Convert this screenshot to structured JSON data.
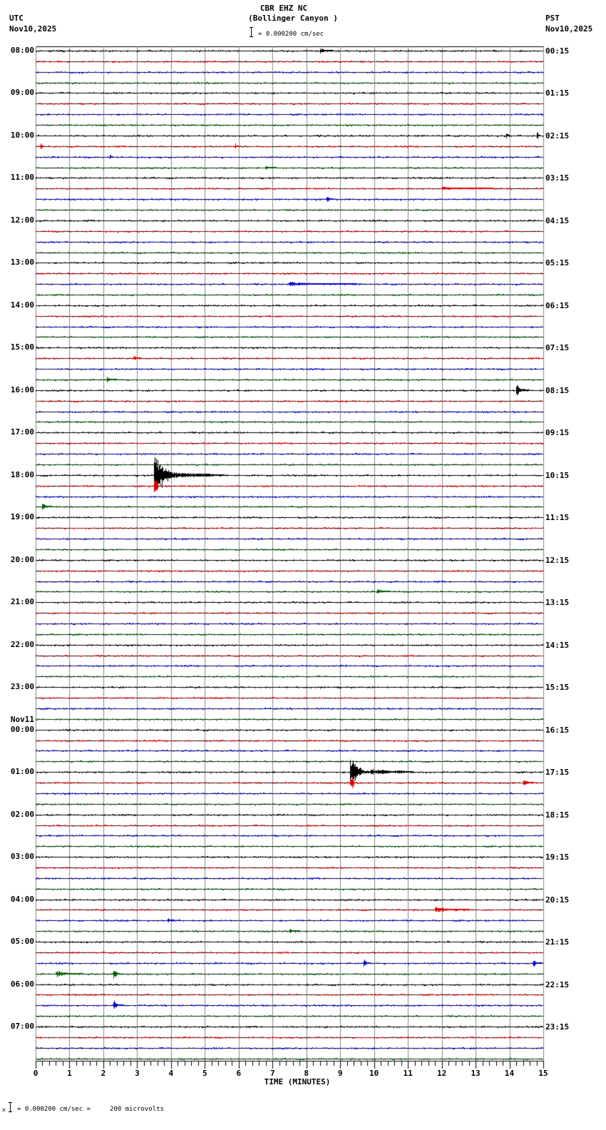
{
  "header": {
    "station": "CBR EHZ NC",
    "site": "(Bollinger Canyon )",
    "scale_text": "= 0.000200 cm/sec",
    "left_tz": "UTC",
    "left_date": "Nov10,2025",
    "right_tz": "PST",
    "right_date": "Nov10,2025"
  },
  "footer": {
    "marker": "x",
    "scale_text": "= 0.000200 cm/sec =     200 microvolts"
  },
  "chart_data": {
    "type": "line",
    "title": "CBR EHZ NC (Bollinger Canyon )",
    "subtitle": "= 0.000200 cm/sec",
    "xlabel": "TIME (MINUTES)",
    "ylabel": "",
    "xlim": [
      0,
      15
    ],
    "x_ticks": [
      "0",
      "1",
      "2",
      "3",
      "4",
      "5",
      "6",
      "7",
      "8",
      "9",
      "10",
      "11",
      "12",
      "13",
      "14",
      "15"
    ],
    "grid": true,
    "trace_colors": [
      "#000000",
      "#e00000",
      "#0000d0",
      "#006000"
    ],
    "rows_per_hour": 4,
    "minutes_per_row": 15,
    "left_hour_labels": [
      {
        "row": 0,
        "label": "08:00"
      },
      {
        "row": 4,
        "label": "09:00"
      },
      {
        "row": 8,
        "label": "10:00"
      },
      {
        "row": 12,
        "label": "11:00"
      },
      {
        "row": 16,
        "label": "12:00"
      },
      {
        "row": 20,
        "label": "13:00"
      },
      {
        "row": 24,
        "label": "14:00"
      },
      {
        "row": 28,
        "label": "15:00"
      },
      {
        "row": 32,
        "label": "16:00"
      },
      {
        "row": 36,
        "label": "17:00"
      },
      {
        "row": 40,
        "label": "18:00"
      },
      {
        "row": 44,
        "label": "19:00"
      },
      {
        "row": 48,
        "label": "20:00"
      },
      {
        "row": 52,
        "label": "21:00"
      },
      {
        "row": 56,
        "label": "22:00"
      },
      {
        "row": 60,
        "label": "23:00"
      },
      {
        "row": 64,
        "label": "00:00",
        "date": "Nov11"
      },
      {
        "row": 68,
        "label": "01:00"
      },
      {
        "row": 72,
        "label": "02:00"
      },
      {
        "row": 76,
        "label": "03:00"
      },
      {
        "row": 80,
        "label": "04:00"
      },
      {
        "row": 84,
        "label": "05:00"
      },
      {
        "row": 88,
        "label": "06:00"
      },
      {
        "row": 92,
        "label": "07:00"
      }
    ],
    "right_hour_labels": [
      {
        "row": 0,
        "label": "00:15"
      },
      {
        "row": 4,
        "label": "01:15"
      },
      {
        "row": 8,
        "label": "02:15"
      },
      {
        "row": 12,
        "label": "03:15"
      },
      {
        "row": 16,
        "label": "04:15"
      },
      {
        "row": 20,
        "label": "05:15"
      },
      {
        "row": 24,
        "label": "06:15"
      },
      {
        "row": 28,
        "label": "07:15"
      },
      {
        "row": 32,
        "label": "08:15"
      },
      {
        "row": 36,
        "label": "09:15"
      },
      {
        "row": 40,
        "label": "10:15"
      },
      {
        "row": 44,
        "label": "11:15"
      },
      {
        "row": 48,
        "label": "12:15"
      },
      {
        "row": 52,
        "label": "13:15"
      },
      {
        "row": 56,
        "label": "14:15"
      },
      {
        "row": 60,
        "label": "15:15"
      },
      {
        "row": 64,
        "label": "16:15"
      },
      {
        "row": 68,
        "label": "17:15"
      },
      {
        "row": 72,
        "label": "18:15"
      },
      {
        "row": 76,
        "label": "19:15"
      },
      {
        "row": 80,
        "label": "20:15"
      },
      {
        "row": 84,
        "label": "21:15"
      },
      {
        "row": 88,
        "label": "22:15"
      },
      {
        "row": 92,
        "label": "23:15"
      }
    ],
    "total_rows": 96,
    "events": [
      {
        "row": 0,
        "minute": 8.4,
        "amp": 5,
        "dur": 0.4
      },
      {
        "row": 8,
        "minute": 13.9,
        "amp": 6,
        "dur": 0.1
      },
      {
        "row": 8,
        "minute": 14.8,
        "amp": 8,
        "dur": 0.1
      },
      {
        "row": 9,
        "minute": 0.15,
        "amp": 6,
        "dur": 0.1
      },
      {
        "row": 9,
        "minute": 5.9,
        "amp": 5,
        "dur": 0.1
      },
      {
        "row": 10,
        "minute": 2.2,
        "amp": 6,
        "dur": 0.1
      },
      {
        "row": 11,
        "minute": 6.8,
        "amp": 5,
        "dur": 0.3
      },
      {
        "row": 14,
        "minute": 8.6,
        "amp": 8,
        "dur": 0.2
      },
      {
        "row": 13,
        "minute": 12.0,
        "amp": 3,
        "dur": 1.5
      },
      {
        "row": 22,
        "minute": 7.5,
        "amp": 4,
        "dur": 2.0
      },
      {
        "row": 29,
        "minute": 2.9,
        "amp": 6,
        "dur": 0.2
      },
      {
        "row": 31,
        "minute": 2.1,
        "amp": 7,
        "dur": 0.3
      },
      {
        "row": 32,
        "minute": 14.2,
        "amp": 10,
        "dur": 0.4
      },
      {
        "row": 40,
        "minute": 3.5,
        "amp": 45,
        "dur": 0.8,
        "big": true
      },
      {
        "row": 43,
        "minute": 0.2,
        "amp": 6,
        "dur": 0.3
      },
      {
        "row": 51,
        "minute": 10.1,
        "amp": 5,
        "dur": 0.4
      },
      {
        "row": 68,
        "minute": 9.3,
        "amp": 30,
        "dur": 0.6,
        "big": true
      },
      {
        "row": 69,
        "minute": 14.4,
        "amp": 8,
        "dur": 0.3
      },
      {
        "row": 81,
        "minute": 11.8,
        "amp": 6,
        "dur": 1.0
      },
      {
        "row": 82,
        "minute": 3.9,
        "amp": 6,
        "dur": 0.2
      },
      {
        "row": 83,
        "minute": 7.5,
        "amp": 5,
        "dur": 0.3
      },
      {
        "row": 86,
        "minute": 9.7,
        "amp": 9,
        "dur": 0.2
      },
      {
        "row": 86,
        "minute": 14.7,
        "amp": 8,
        "dur": 0.2
      },
      {
        "row": 87,
        "minute": 2.3,
        "amp": 12,
        "dur": 0.2
      },
      {
        "row": 87,
        "minute": 0.6,
        "amp": 6,
        "dur": 0.8
      },
      {
        "row": 90,
        "minute": 2.3,
        "amp": 8,
        "dur": 0.3
      }
    ]
  },
  "xaxis": {
    "label": "TIME (MINUTES)"
  }
}
